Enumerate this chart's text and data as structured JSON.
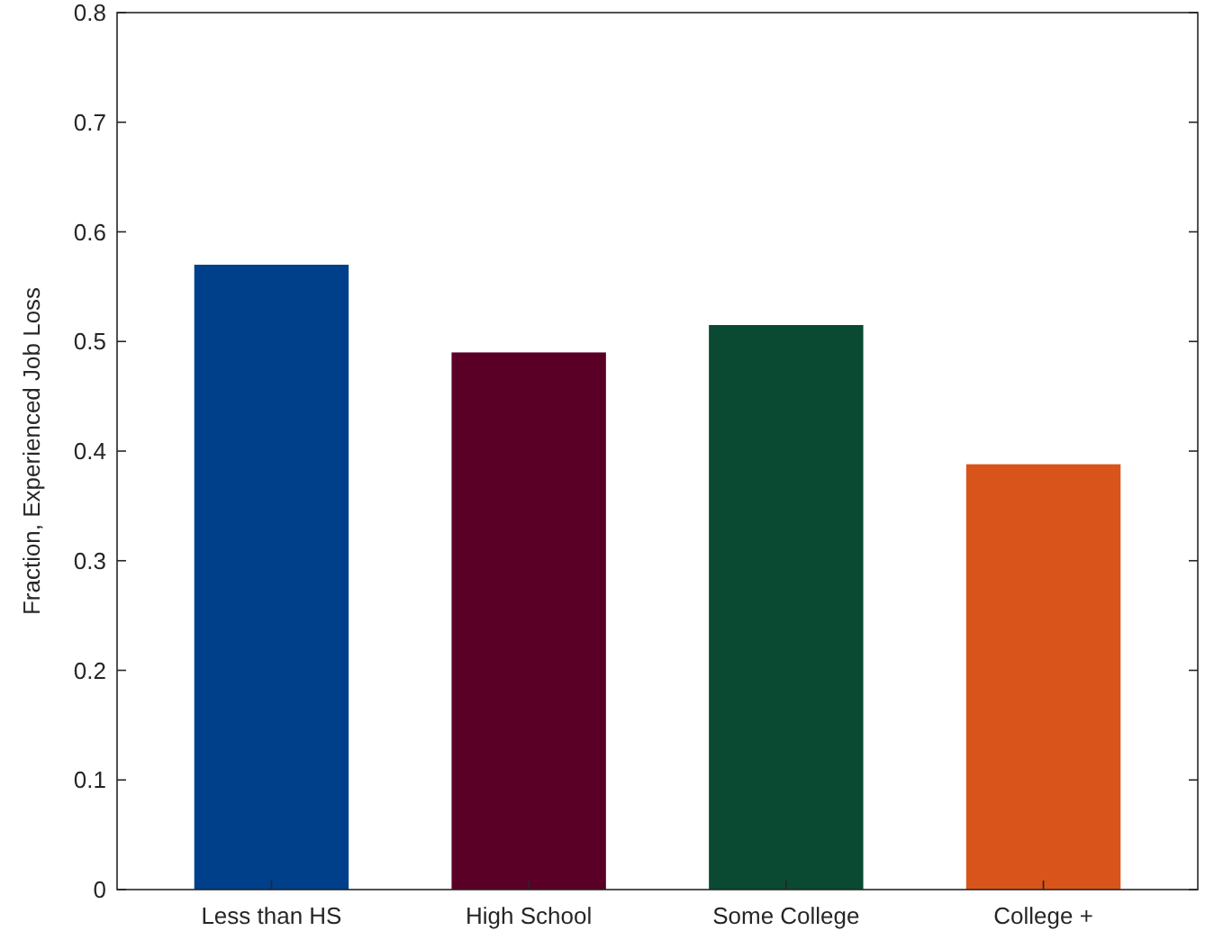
{
  "chart_data": {
    "type": "bar",
    "ylabel": "Fraction, Experienced Job Loss",
    "categories": [
      "Less than HS",
      "High School",
      "Some College",
      "College +"
    ],
    "values": [
      0.57,
      0.49,
      0.515,
      0.388
    ],
    "colors": [
      "#003f8a",
      "#5a0027",
      "#0b4a32",
      "#d9541a"
    ],
    "ylim": [
      0,
      0.8
    ],
    "yticks": [
      0,
      0.1,
      0.2,
      0.3,
      0.4,
      0.5,
      0.6,
      0.7,
      0.8
    ],
    "grid": false
  }
}
